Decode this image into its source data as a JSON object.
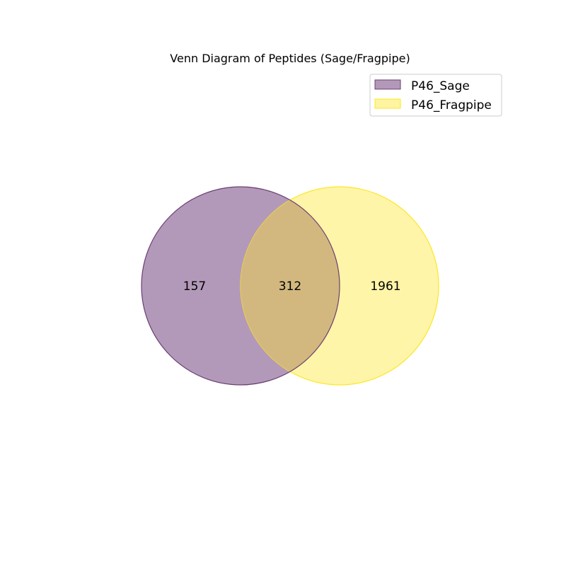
{
  "title": "Venn Diagram of Peptides (Sage/Fragpipe)",
  "sets": [
    {
      "name": "P46_Sage",
      "fill": "#b399b9",
      "edge": "#6b3f72",
      "fill_opacity": 1
    },
    {
      "name": "P46_Fragpipe",
      "fill": "#fde725",
      "edge": "#fde725",
      "fill_opacity": 0.4
    }
  ],
  "overlap_fill": "#d2b87f",
  "regions": {
    "only_sage": "157",
    "both": "312",
    "only_fragpipe": "1961"
  },
  "legend": {
    "placement": "top-right",
    "items": [
      {
        "label": "P46_Sage",
        "swatch": "#b399b9",
        "edge": "#6b3f72"
      },
      {
        "label": "P46_Fragpipe",
        "swatch": "#fef4a2",
        "edge": "#fde725"
      }
    ]
  }
}
